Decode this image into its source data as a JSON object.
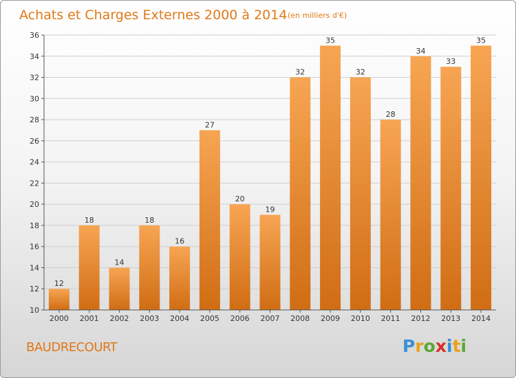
{
  "title": "Achats et Charges Externes 2000 à 2014",
  "subtitle": "(en milliers d'€)",
  "place": "BAUDRECOURT",
  "logo": {
    "letters": [
      "P",
      "r",
      "o",
      "x",
      "i",
      "t",
      "i"
    ],
    "colors": [
      "#3b8fd6",
      "#e8a21a",
      "#5aa834",
      "#d6302a",
      "#3b8fd6",
      "#e8a21a",
      "#5aa834"
    ]
  },
  "colors": {
    "bar_top": "#f7a553",
    "bar_bottom": "#d06d14",
    "title": "#e07818",
    "grid": "#cfcfcf"
  },
  "chart_data": {
    "type": "bar",
    "categories": [
      "2000",
      "2001",
      "2002",
      "2003",
      "2004",
      "2005",
      "2006",
      "2007",
      "2008",
      "2009",
      "2010",
      "2011",
      "2012",
      "2013",
      "2014"
    ],
    "values": [
      12,
      18,
      14,
      18,
      16,
      27,
      20,
      19,
      32,
      35,
      32,
      28,
      34,
      33,
      35
    ],
    "ylim": [
      10,
      36
    ],
    "yticks": [
      10,
      12,
      14,
      16,
      18,
      20,
      22,
      24,
      26,
      28,
      30,
      32,
      34,
      36
    ],
    "grid": true
  }
}
